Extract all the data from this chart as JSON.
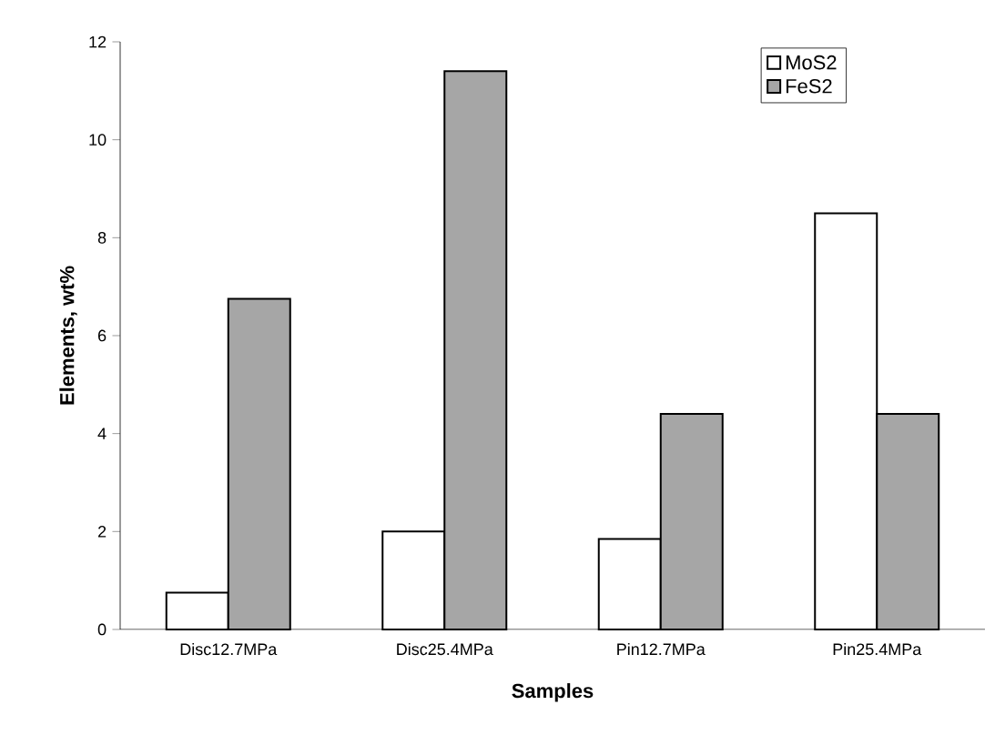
{
  "chart_data": {
    "type": "bar",
    "xlabel": "Samples",
    "ylabel": "Elements, wt%",
    "categories": [
      "Disc12.7MPa",
      "Disc25.4MPa",
      "Pin12.7MPa",
      "Pin25.4MPa"
    ],
    "series": [
      {
        "name": "MoS2",
        "color": "#ffffff",
        "values": [
          0.75,
          2.0,
          1.85,
          8.5
        ]
      },
      {
        "name": "FeS2",
        "color": "#a6a6a6",
        "values": [
          6.75,
          11.4,
          4.4,
          4.4
        ]
      }
    ],
    "ylim": [
      0,
      12
    ],
    "yticks": [
      0,
      2,
      4,
      6,
      8,
      10,
      12
    ],
    "grid": false,
    "legend": "top right"
  }
}
